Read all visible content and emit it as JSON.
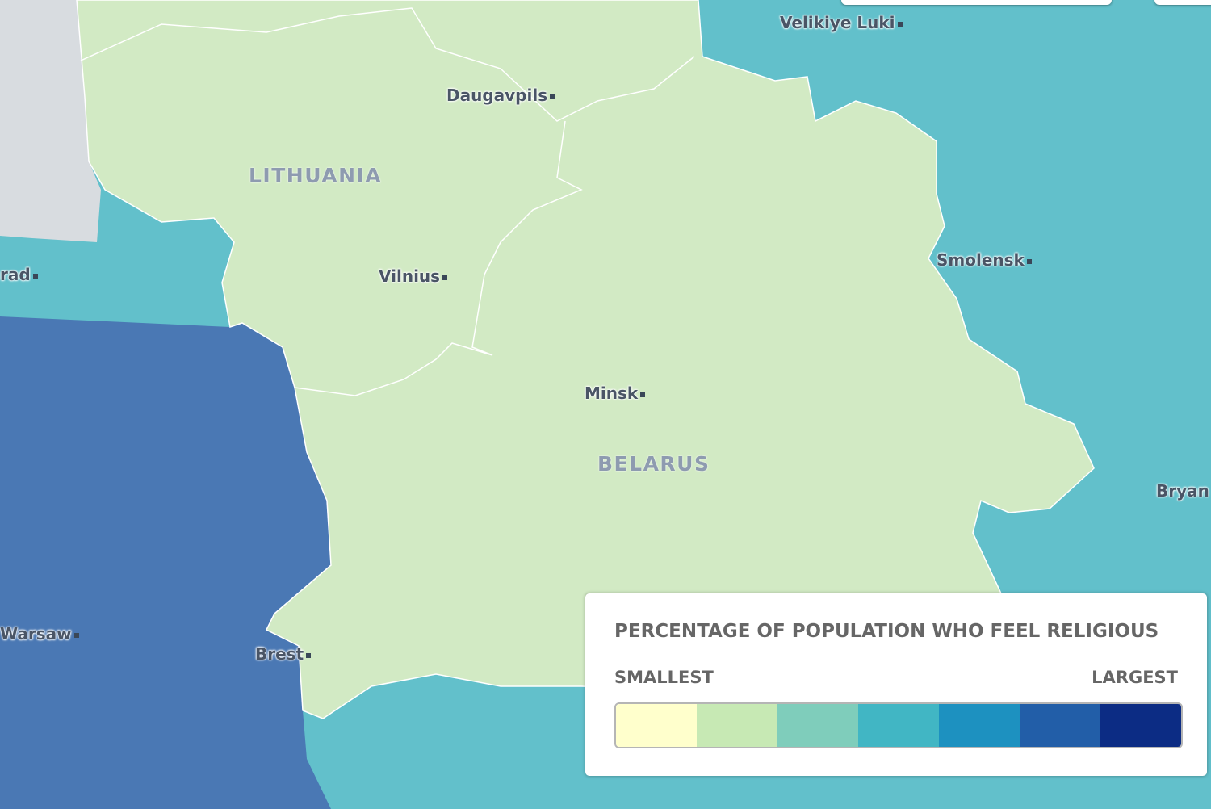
{
  "map": {
    "colors": {
      "background_region": "#62c0cb",
      "sea": "#d8dce0",
      "poland": "#4a78b4",
      "baltic_belarus": "#d2eac4",
      "border": "#ffffff"
    },
    "countries": [
      "LITHUANIA",
      "BELARUS"
    ],
    "cities": [
      "Velikiye Luki",
      "Daugavpils",
      "Smolensk",
      "rad",
      "Vilnius",
      "Minsk",
      "Bryan",
      "Warsaw",
      "Brest"
    ]
  },
  "legend": {
    "title": "PERCENTAGE OF POPULATION WHO FEEL RELIGIOUS",
    "low_label": "SMALLEST",
    "high_label": "LARGEST",
    "scale_colors": [
      "#ffffcc",
      "#c7e9b4",
      "#7fcdbb",
      "#41b6c4",
      "#1d91c0",
      "#225ea8",
      "#0c2c84"
    ]
  }
}
